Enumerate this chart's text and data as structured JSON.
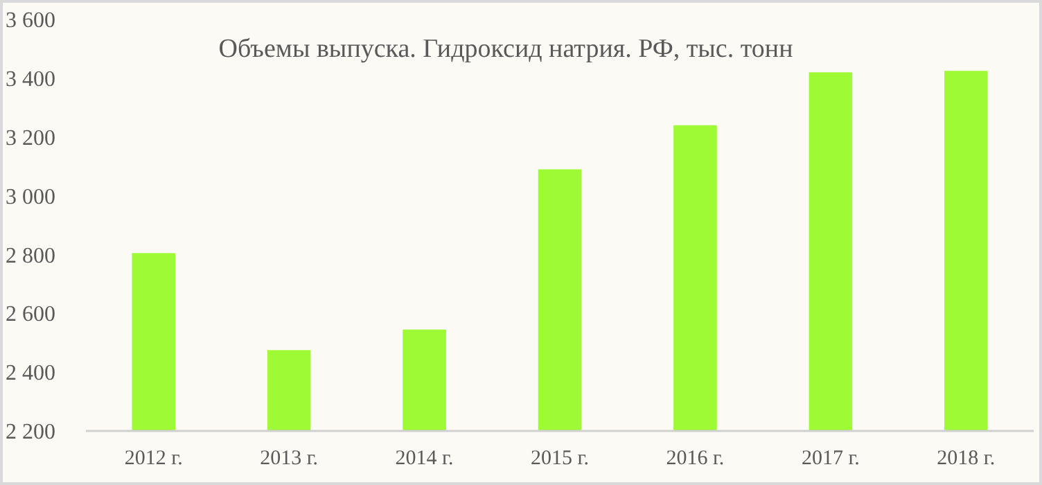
{
  "chart_data": {
    "type": "bar",
    "title": "Объемы выпуска. Гидроксид натрия.  РФ, тыс. тонн",
    "categories": [
      "2012 г.",
      "2013 г.",
      "2014 г.",
      "2015 г.",
      "2016 г.",
      "2017 г.",
      "2018 г."
    ],
    "values": [
      2805,
      2475,
      2545,
      3090,
      3240,
      3420,
      3425
    ],
    "color": "#9efa35",
    "ylim": [
      2200,
      3600
    ],
    "yticks": [
      {
        "value": 2200,
        "label": "2 200"
      },
      {
        "value": 2400,
        "label": "2 400"
      },
      {
        "value": 2600,
        "label": "2 600"
      },
      {
        "value": 2800,
        "label": "2 800"
      },
      {
        "value": 3000,
        "label": "3 000"
      },
      {
        "value": 3200,
        "label": "3 200"
      },
      {
        "value": 3400,
        "label": "3 400"
      },
      {
        "value": 3600,
        "label": "3 600"
      }
    ],
    "grid": false
  }
}
